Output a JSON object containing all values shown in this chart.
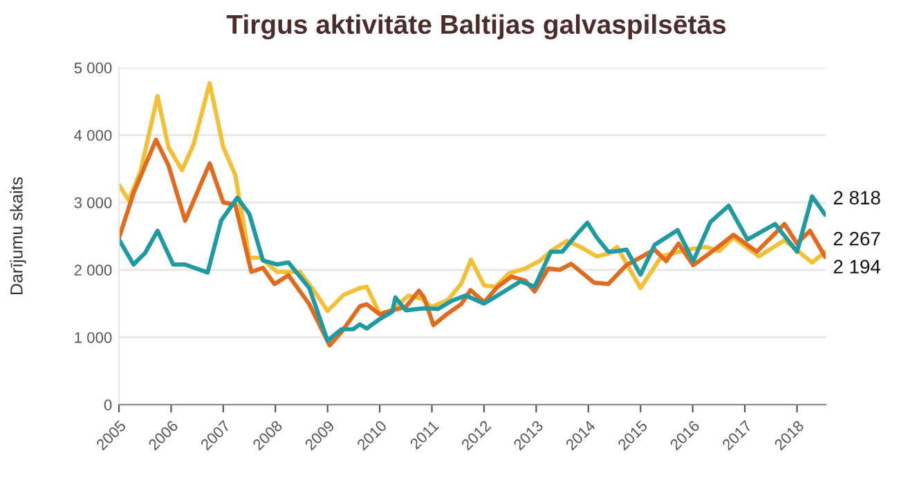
{
  "chart_data": {
    "type": "line",
    "title": "Tirgus aktivitāte Baltijas galvaspilsētās",
    "ylabel": "Darījumu skaits",
    "xlim": [
      2005,
      2018.55
    ],
    "xticks": [
      2005,
      2006,
      2007,
      2008,
      2009,
      2010,
      2011,
      2012,
      2013,
      2014,
      2015,
      2016,
      2017,
      2018
    ],
    "ylim": [
      0,
      5000
    ],
    "yticks": [
      {
        "value": 0,
        "label": "0"
      },
      {
        "value": 1000,
        "label": "1 000"
      },
      {
        "value": 2000,
        "label": "2 000"
      },
      {
        "value": 3000,
        "label": "3 000"
      },
      {
        "value": 4000,
        "label": "4 000"
      },
      {
        "value": 5000,
        "label": "5 000"
      }
    ],
    "grid": "y",
    "marker": "none",
    "line_style": "solid",
    "series": [
      {
        "color": "#f2c037",
        "x": [
          2005.0,
          2005.19,
          2005.42,
          2005.74,
          2005.95,
          2006.21,
          2006.43,
          2006.74,
          2007.0,
          2007.23,
          2007.5,
          2007.72,
          2008.03,
          2008.47,
          2008.73,
          2009.0,
          2009.31,
          2009.62,
          2009.75,
          2010.0,
          2010.24,
          2010.55,
          2010.81,
          2010.99,
          2011.3,
          2011.56,
          2011.75,
          2012.0,
          2012.22,
          2012.48,
          2012.79,
          2013.06,
          2013.32,
          2013.59,
          2013.85,
          2014.16,
          2014.38,
          2014.55,
          2015.0,
          2015.4,
          2015.89,
          2016.25,
          2016.51,
          2016.78,
          2017.27,
          2017.76,
          2018.29,
          2018.54
        ],
        "values": [
          3260,
          3030,
          3480,
          4580,
          3820,
          3480,
          3860,
          4770,
          3820,
          3410,
          2180,
          2180,
          1970,
          1970,
          1700,
          1390,
          1630,
          1730,
          1750,
          1350,
          1400,
          1620,
          1570,
          1450,
          1550,
          1790,
          2150,
          1770,
          1750,
          1950,
          2020,
          2130,
          2300,
          2430,
          2340,
          2200,
          2240,
          2340,
          1730,
          2200,
          2300,
          2340,
          2280,
          2480,
          2200,
          2440,
          2110,
          2267
        ],
        "value_labels": [
          null,
          null,
          null,
          null,
          null,
          null,
          null,
          null,
          null,
          null,
          null,
          null,
          null,
          null,
          null,
          null,
          null,
          null,
          null,
          null,
          null,
          null,
          null,
          null,
          null,
          null,
          null,
          null,
          null,
          null,
          null,
          null,
          null,
          null,
          null,
          null,
          null,
          null,
          null,
          null,
          null,
          null,
          null,
          null,
          null,
          null,
          null,
          "2 267"
        ]
      },
      {
        "color": "#e06a1e",
        "x": [
          2005.0,
          2005.28,
          2005.71,
          2005.95,
          2006.27,
          2006.74,
          2007.0,
          2007.23,
          2007.54,
          2007.76,
          2007.98,
          2008.25,
          2008.65,
          2009.04,
          2009.27,
          2009.62,
          2009.75,
          2010.0,
          2010.24,
          2010.5,
          2010.75,
          2010.85,
          2011.03,
          2011.3,
          2011.56,
          2011.74,
          2012.0,
          2012.26,
          2012.53,
          2012.79,
          2012.97,
          2013.23,
          2013.45,
          2013.67,
          2013.89,
          2014.11,
          2014.38,
          2014.73,
          2015.27,
          2015.49,
          2015.73,
          2016.01,
          2016.42,
          2016.78,
          2017.23,
          2017.76,
          2018.0,
          2018.25,
          2018.54
        ],
        "values": [
          2470,
          3140,
          3930,
          3550,
          2730,
          3580,
          3000,
          2970,
          1970,
          2030,
          1790,
          1920,
          1490,
          880,
          1080,
          1460,
          1490,
          1340,
          1400,
          1450,
          1690,
          1590,
          1180,
          1350,
          1490,
          1700,
          1520,
          1750,
          1900,
          1840,
          1680,
          2020,
          2000,
          2090,
          1950,
          1810,
          1790,
          2070,
          2300,
          2130,
          2390,
          2070,
          2300,
          2520,
          2270,
          2680,
          2390,
          2580,
          2194
        ],
        "value_labels": [
          null,
          null,
          null,
          null,
          null,
          null,
          null,
          null,
          null,
          null,
          null,
          null,
          null,
          null,
          null,
          null,
          null,
          null,
          null,
          null,
          null,
          null,
          null,
          null,
          null,
          null,
          null,
          null,
          null,
          null,
          null,
          null,
          null,
          null,
          null,
          null,
          null,
          null,
          null,
          null,
          null,
          null,
          null,
          null,
          null,
          null,
          null,
          null,
          "2 194"
        ]
      },
      {
        "color": "#1f9aa0",
        "x": [
          2005.0,
          2005.28,
          2005.5,
          2005.74,
          2006.04,
          2006.26,
          2006.7,
          2006.96,
          2007.27,
          2007.5,
          2007.76,
          2008.03,
          2008.25,
          2008.65,
          2009.0,
          2009.27,
          2009.49,
          2009.62,
          2009.75,
          2010.0,
          2010.24,
          2010.3,
          2010.5,
          2010.85,
          2011.12,
          2011.38,
          2011.65,
          2012.0,
          2012.26,
          2012.7,
          2012.97,
          2013.28,
          2013.5,
          2013.76,
          2013.98,
          2014.16,
          2014.38,
          2014.47,
          2014.73,
          2015.0,
          2015.27,
          2015.71,
          2016.01,
          2016.34,
          2016.69,
          2017.05,
          2017.58,
          2018.0,
          2018.29,
          2018.54
        ],
        "values": [
          2450,
          2080,
          2250,
          2580,
          2080,
          2080,
          1960,
          2730,
          3070,
          2830,
          2140,
          2080,
          2110,
          1730,
          950,
          1120,
          1120,
          1190,
          1130,
          1270,
          1380,
          1590,
          1400,
          1430,
          1420,
          1540,
          1620,
          1500,
          1620,
          1830,
          1750,
          2270,
          2270,
          2510,
          2700,
          2480,
          2270,
          2270,
          2300,
          1930,
          2370,
          2590,
          2130,
          2710,
          2950,
          2450,
          2680,
          2270,
          3090,
          2818
        ],
        "value_labels": [
          null,
          null,
          null,
          null,
          null,
          null,
          null,
          null,
          null,
          null,
          null,
          null,
          null,
          null,
          null,
          null,
          null,
          null,
          null,
          null,
          null,
          null,
          null,
          null,
          null,
          null,
          null,
          null,
          null,
          null,
          null,
          null,
          null,
          null,
          null,
          null,
          null,
          null,
          null,
          null,
          null,
          null,
          null,
          null,
          null,
          null,
          null,
          null,
          null,
          "2 818"
        ]
      }
    ]
  }
}
